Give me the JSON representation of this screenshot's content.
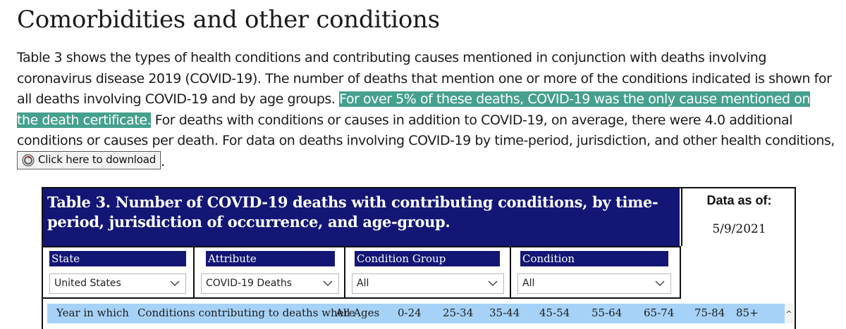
{
  "page": {
    "title": "Comorbidities and other conditions",
    "paragraph": {
      "before_highlight": "Table 3 shows the types of health conditions and contributing causes mentioned in conjunction with deaths involving coronavirus disease 2019 (COVID-19). The number of deaths that mention one or more of the conditions indicated is shown for all deaths involving COVID-19 and by age groups. ",
      "highlight": "For over 5% of these deaths, COVID-19 was the only cause mentioned on the death certificate.",
      "after_highlight": " For deaths with conditions or causes in addition to COVID-19, on average, there were 4.0 additional conditions or causes per death. For data on deaths involving COVID-19 by time-period, jurisdiction, and other health conditions, ",
      "download_label": "Click here to download",
      "trailing": "."
    }
  },
  "dashboard": {
    "title": "Table 3. Number of COVID-19 deaths with contributing conditions, by time-period, jurisdiction of occurrence, and age-group.",
    "asof_label": "Data as of:",
    "asof_date": "5/9/2021",
    "filters": [
      {
        "label": "State",
        "value": "United States"
      },
      {
        "label": "Attribute",
        "value": "COVID-19 Deaths"
      },
      {
        "label": "Condition Group",
        "value": "All"
      },
      {
        "label": "Condition",
        "value": "All"
      }
    ],
    "columns": [
      "Year in which",
      "Conditions contributing to deaths where",
      "All Ages",
      "0-24",
      "25-34",
      "35-44",
      "45-54",
      "55-64",
      "65-74",
      "75-84",
      "85+"
    ],
    "scroll_icon": "^"
  },
  "colors": {
    "highlight": "#45a08d",
    "navy": "#131675",
    "header_blue": "#a6d2f7"
  }
}
